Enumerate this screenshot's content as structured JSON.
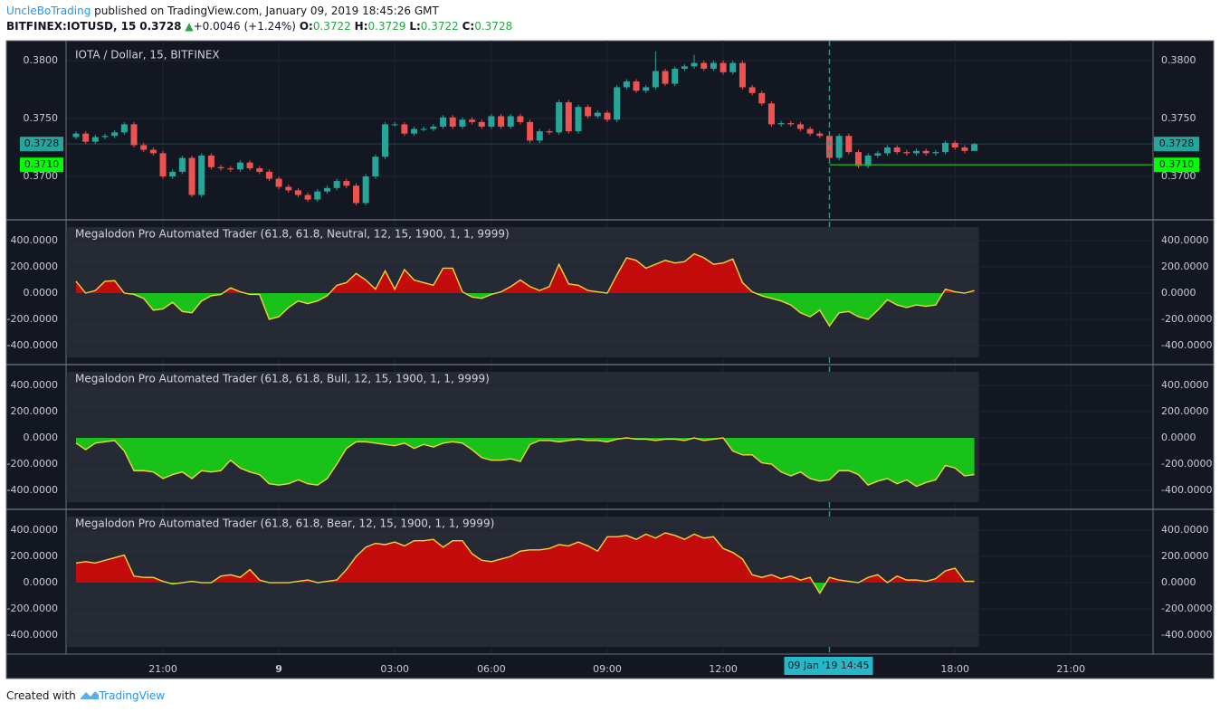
{
  "header": {
    "author": "UncleBoTrading",
    "published": "published on TradingView.com, January 09, 2019 18:45:26 GMT",
    "symbol": "BITFINEX:IOTUSD, 15",
    "last": "0.3728",
    "arrow": "▲",
    "change": "+0.0046 (+1.24%)",
    "ohlc": [
      {
        "key": "O:",
        "value": "0.3722"
      },
      {
        "key": "H:",
        "value": "0.3729"
      },
      {
        "key": "L:",
        "value": "0.3722"
      },
      {
        "key": "C:",
        "value": "0.3728"
      }
    ]
  },
  "footer": {
    "text": "Created with",
    "brand": "TradingView"
  },
  "chart_data": [
    {
      "type": "candlestick",
      "title": "IOTA / Dollar, 15, BITFINEX",
      "up_color": "#26a69a",
      "down_color": "#ef5350",
      "x": [
        0,
        1,
        2,
        3,
        4,
        5,
        6,
        7,
        8,
        9,
        10,
        11,
        12,
        13,
        14,
        15,
        16,
        17,
        18,
        19,
        20,
        21,
        22,
        23,
        24,
        25,
        26,
        27,
        28,
        29,
        30,
        31,
        32,
        33,
        34,
        35,
        36,
        37,
        38,
        39,
        40,
        41,
        42,
        43,
        44,
        45,
        46,
        47,
        48,
        49,
        50,
        51,
        52,
        53,
        54,
        55,
        56,
        57,
        58,
        59,
        60,
        61,
        62,
        63,
        64,
        65,
        66,
        67,
        68,
        69,
        70,
        71,
        72,
        73,
        74,
        75,
        76,
        77,
        78,
        79,
        80,
        81,
        82,
        83,
        84,
        85,
        86,
        87,
        88,
        89,
        90,
        91,
        92,
        93
      ],
      "open": [
        0.3734,
        0.3737,
        0.373,
        0.3734,
        0.3735,
        0.3738,
        0.3745,
        0.3727,
        0.3723,
        0.372,
        0.37,
        0.3704,
        0.3716,
        0.3684,
        0.3718,
        0.3708,
        0.3707,
        0.3706,
        0.3712,
        0.3707,
        0.3704,
        0.3698,
        0.3691,
        0.3688,
        0.3684,
        0.368,
        0.3687,
        0.369,
        0.3696,
        0.3692,
        0.3677,
        0.37,
        0.3717,
        0.3745,
        0.3745,
        0.3737,
        0.3741,
        0.3741,
        0.3743,
        0.3751,
        0.3743,
        0.3749,
        0.3747,
        0.3743,
        0.3752,
        0.3743,
        0.3752,
        0.3747,
        0.3731,
        0.3739,
        0.3738,
        0.3764,
        0.3739,
        0.376,
        0.3752,
        0.3755,
        0.3749,
        0.3777,
        0.3782,
        0.3774,
        0.3777,
        0.3791,
        0.378,
        0.3793,
        0.3795,
        0.3798,
        0.3793,
        0.3798,
        0.379,
        0.3798,
        0.3777,
        0.3772,
        0.3763,
        0.3745,
        0.3746,
        0.3745,
        0.3741,
        0.3737,
        0.3735,
        0.3716,
        0.3735,
        0.3721,
        0.3709,
        0.3718,
        0.372,
        0.3725,
        0.3721,
        0.372,
        0.3722,
        0.372,
        0.3721,
        0.3729,
        0.3725,
        0.3722
      ],
      "high": [
        0.3739,
        0.3739,
        0.3736,
        0.3737,
        0.374,
        0.3747,
        0.3747,
        0.3729,
        0.3725,
        0.3722,
        0.3706,
        0.3718,
        0.3718,
        0.372,
        0.372,
        0.371,
        0.3709,
        0.3714,
        0.3714,
        0.3709,
        0.3706,
        0.37,
        0.3693,
        0.369,
        0.3686,
        0.3689,
        0.3692,
        0.3698,
        0.3698,
        0.3694,
        0.3702,
        0.3719,
        0.3747,
        0.3747,
        0.3747,
        0.3743,
        0.3743,
        0.3745,
        0.3753,
        0.3753,
        0.3751,
        0.3751,
        0.3749,
        0.3754,
        0.3754,
        0.3754,
        0.3754,
        0.3749,
        0.3741,
        0.3741,
        0.3766,
        0.3766,
        0.3762,
        0.3762,
        0.3757,
        0.3757,
        0.3779,
        0.3784,
        0.3784,
        0.3779,
        0.3808,
        0.3793,
        0.3795,
        0.3797,
        0.3805,
        0.38,
        0.38,
        0.38,
        0.38,
        0.38,
        0.3779,
        0.3774,
        0.3765,
        0.3748,
        0.3748,
        0.3747,
        0.3743,
        0.3739,
        0.3737,
        0.3737,
        0.3737,
        0.3723,
        0.372,
        0.3722,
        0.3727,
        0.3727,
        0.3723,
        0.3724,
        0.3724,
        0.3723,
        0.3731,
        0.3731,
        0.3727,
        0.3729
      ],
      "low": [
        0.3732,
        0.3728,
        0.3728,
        0.3732,
        0.3733,
        0.3736,
        0.3725,
        0.3721,
        0.3718,
        0.3698,
        0.3698,
        0.3702,
        0.3682,
        0.3682,
        0.3706,
        0.3705,
        0.3704,
        0.3704,
        0.3705,
        0.3702,
        0.3696,
        0.3689,
        0.3686,
        0.3682,
        0.3678,
        0.3678,
        0.3685,
        0.3688,
        0.369,
        0.3675,
        0.3675,
        0.3698,
        0.3715,
        0.3743,
        0.3735,
        0.3735,
        0.3739,
        0.3739,
        0.3741,
        0.3741,
        0.3741,
        0.3745,
        0.3741,
        0.3741,
        0.3741,
        0.3741,
        0.3745,
        0.3729,
        0.3729,
        0.3736,
        0.3736,
        0.3737,
        0.3737,
        0.375,
        0.375,
        0.3747,
        0.3747,
        0.3775,
        0.3772,
        0.3772,
        0.3775,
        0.3778,
        0.3778,
        0.3791,
        0.3793,
        0.3791,
        0.3791,
        0.3788,
        0.3788,
        0.3775,
        0.377,
        0.3761,
        0.3743,
        0.3743,
        0.3743,
        0.3739,
        0.3735,
        0.3733,
        0.3714,
        0.3714,
        0.3719,
        0.3707,
        0.3707,
        0.3716,
        0.3718,
        0.3719,
        0.3718,
        0.3718,
        0.3718,
        0.3718,
        0.3719,
        0.3723,
        0.372,
        0.3722
      ],
      "close": [
        0.3737,
        0.373,
        0.3734,
        0.3735,
        0.3738,
        0.3745,
        0.3727,
        0.3723,
        0.372,
        0.37,
        0.3704,
        0.3716,
        0.3684,
        0.3718,
        0.3708,
        0.3707,
        0.3706,
        0.3712,
        0.3707,
        0.3704,
        0.3698,
        0.3691,
        0.3688,
        0.3684,
        0.368,
        0.3687,
        0.369,
        0.3696,
        0.3692,
        0.3677,
        0.37,
        0.3717,
        0.3745,
        0.3745,
        0.3737,
        0.3741,
        0.3741,
        0.3743,
        0.3751,
        0.3743,
        0.3749,
        0.3747,
        0.3743,
        0.3752,
        0.3743,
        0.3752,
        0.3747,
        0.3731,
        0.3739,
        0.3738,
        0.3764,
        0.3739,
        0.376,
        0.3752,
        0.3755,
        0.3749,
        0.3777,
        0.3782,
        0.3774,
        0.3777,
        0.3791,
        0.378,
        0.3793,
        0.3795,
        0.3798,
        0.3793,
        0.3798,
        0.379,
        0.3798,
        0.3777,
        0.3772,
        0.3763,
        0.3745,
        0.3746,
        0.3745,
        0.3741,
        0.3737,
        0.3735,
        0.3716,
        0.3735,
        0.3721,
        0.3709,
        0.3718,
        0.372,
        0.3725,
        0.3721,
        0.372,
        0.3722,
        0.372,
        0.3721,
        0.3729,
        0.3725,
        0.3722,
        0.3728
      ],
      "xlim": [
        -1.03,
        111.5
      ],
      "xticks": [
        {
          "value": 9,
          "label": "21:00"
        },
        {
          "value": 21,
          "label": "9",
          "bold": true
        },
        {
          "value": 33,
          "label": "03:00"
        },
        {
          "value": 43,
          "label": "06:00"
        },
        {
          "value": 55,
          "label": "09:00"
        },
        {
          "value": 67,
          "label": "12:00"
        },
        {
          "value": 91,
          "label": "18:00"
        },
        {
          "value": 103,
          "label": "21:00"
        }
      ],
      "ylim": [
        0.36625,
        0.38172
      ],
      "yticks": [
        {
          "value": 0.38,
          "label": "0.3800"
        },
        {
          "value": 0.375,
          "label": "0.3750"
        },
        {
          "value": 0.37,
          "label": "0.3700"
        }
      ],
      "price_tags": [
        {
          "value": 0.3728,
          "label": "0.3728",
          "color": "#26a69a"
        },
        {
          "value": 0.371,
          "label": "0.3710",
          "color": "#00ff00"
        }
      ],
      "crosshair": {
        "x": 78,
        "label": "09 Jan '19   14:45"
      }
    },
    {
      "type": "area",
      "title": "Megalodon Pro Automated Trader (61.8, 61.8, Neutral, 12, 15, 1900, 1, 1, 9999)",
      "pos_color": "#c30b0b",
      "neg_color": "#19c219",
      "line_color": "#f0d43a",
      "values": [
        90,
        0,
        20,
        90,
        95,
        0,
        -10,
        -40,
        -130,
        -120,
        -70,
        -140,
        -150,
        -60,
        -20,
        -10,
        40,
        10,
        -10,
        -10,
        -200,
        -180,
        -110,
        -60,
        -80,
        -60,
        -20,
        60,
        80,
        150,
        100,
        30,
        170,
        30,
        180,
        100,
        80,
        60,
        190,
        190,
        10,
        -30,
        -40,
        -10,
        10,
        50,
        100,
        50,
        20,
        50,
        220,
        70,
        60,
        20,
        10,
        0,
        140,
        270,
        250,
        190,
        220,
        250,
        230,
        240,
        300,
        270,
        220,
        230,
        260,
        80,
        10,
        -20,
        -40,
        -60,
        -90,
        -150,
        -180,
        -130,
        -250,
        -150,
        -140,
        -180,
        -200,
        -130,
        -50,
        -90,
        -110,
        -90,
        -100,
        -90,
        30,
        10,
        0,
        20
      ],
      "ylim": [
        -545,
        559
      ],
      "yticks": [
        {
          "value": 400,
          "label": "400.0000"
        },
        {
          "value": 200,
          "label": "200.0000"
        },
        {
          "value": 0,
          "label": "0.0000"
        },
        {
          "value": -200,
          "label": "-200.0000"
        },
        {
          "value": -400,
          "label": "-400.0000"
        }
      ]
    },
    {
      "type": "area",
      "title": "Megalodon Pro Automated Trader (61.8, 61.8, Bull, 12, 15, 1900, 1, 1, 9999)",
      "pos_color": "#c30b0b",
      "neg_color": "#19c219",
      "line_color": "#f0d43a",
      "values": [
        -40,
        -90,
        -40,
        -30,
        -20,
        -100,
        -250,
        -250,
        -260,
        -310,
        -280,
        -260,
        -310,
        -250,
        -260,
        -250,
        -170,
        -230,
        -260,
        -280,
        -350,
        -360,
        -350,
        -320,
        -350,
        -360,
        -310,
        -200,
        -80,
        -30,
        -30,
        -40,
        -50,
        -60,
        -40,
        -80,
        -50,
        -70,
        -40,
        -30,
        -40,
        -90,
        -150,
        -170,
        -170,
        -160,
        -180,
        -50,
        -20,
        -20,
        -30,
        -20,
        -10,
        -20,
        -20,
        -30,
        -10,
        0,
        -10,
        -10,
        -20,
        -10,
        -10,
        -20,
        0,
        -20,
        -10,
        0,
        -100,
        -130,
        -130,
        -190,
        -200,
        -260,
        -290,
        -260,
        -310,
        -330,
        -320,
        -250,
        -250,
        -280,
        -360,
        -330,
        -310,
        -350,
        -320,
        -370,
        -340,
        -320,
        -210,
        -230,
        -290,
        -280
      ],
      "ylim": [
        -545,
        559
      ],
      "yticks": [
        {
          "value": 400,
          "label": "400.0000"
        },
        {
          "value": 200,
          "label": "200.0000"
        },
        {
          "value": 0,
          "label": "0.0000"
        },
        {
          "value": -200,
          "label": "-200.0000"
        },
        {
          "value": -400,
          "label": "-400.0000"
        }
      ]
    },
    {
      "type": "area",
      "title": "Megalodon Pro Automated Trader (61.8, 61.8, Bear, 12, 15, 1900, 1, 1, 9999)",
      "pos_color": "#c30b0b",
      "neg_color": "#19c219",
      "line_color": "#f0d43a",
      "values": [
        150,
        160,
        150,
        170,
        190,
        210,
        50,
        40,
        40,
        10,
        -10,
        0,
        10,
        0,
        0,
        50,
        60,
        40,
        100,
        20,
        0,
        0,
        0,
        10,
        20,
        0,
        10,
        20,
        100,
        200,
        270,
        300,
        290,
        310,
        280,
        320,
        320,
        330,
        270,
        320,
        320,
        220,
        170,
        160,
        180,
        200,
        240,
        250,
        250,
        260,
        290,
        280,
        310,
        280,
        240,
        350,
        350,
        360,
        330,
        370,
        340,
        380,
        360,
        330,
        370,
        340,
        350,
        260,
        230,
        180,
        60,
        40,
        60,
        30,
        50,
        20,
        40,
        -80,
        40,
        20,
        10,
        0,
        40,
        60,
        0,
        50,
        20,
        20,
        10,
        30,
        90,
        110,
        10,
        10
      ],
      "ylim": [
        -545,
        559
      ],
      "yticks": [
        {
          "value": 400,
          "label": "400.0000"
        },
        {
          "value": 200,
          "label": "200.0000"
        },
        {
          "value": 0,
          "label": "0.0000"
        },
        {
          "value": -200,
          "label": "-200.0000"
        },
        {
          "value": -400,
          "label": "-400.0000"
        }
      ]
    }
  ]
}
